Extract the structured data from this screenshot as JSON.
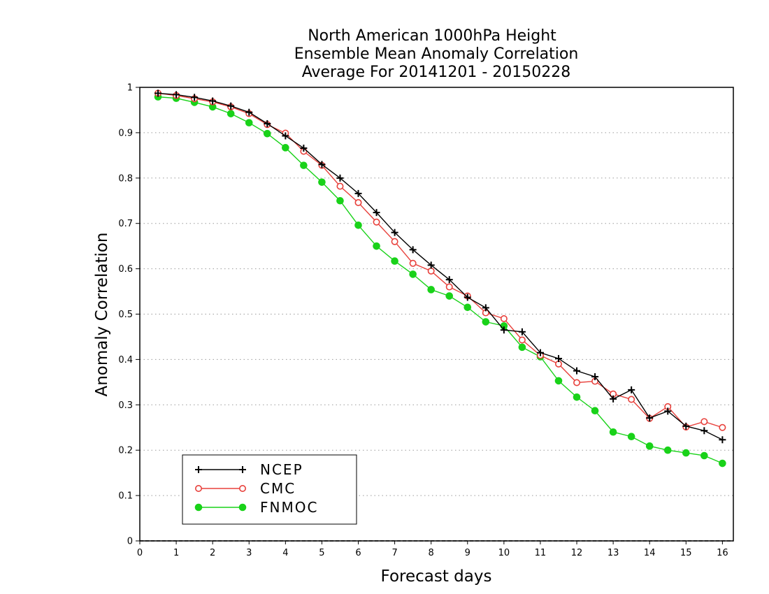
{
  "chart_data": {
    "type": "line",
    "title_lines": [
      "North American 1000hPa Height",
      "Ensemble Mean Anomaly Correlation",
      "Average For 20141201 - 20150228"
    ],
    "xlabel": "Forecast days",
    "ylabel": "Anomaly Correlation",
    "xlim": [
      0,
      16.3
    ],
    "ylim": [
      0,
      1
    ],
    "x_ticks": [
      0,
      1,
      2,
      3,
      4,
      5,
      6,
      7,
      8,
      9,
      10,
      11,
      12,
      13,
      14,
      15,
      16
    ],
    "y_ticks": [
      0,
      0.1,
      0.2,
      0.3,
      0.4,
      0.5,
      0.6,
      0.7,
      0.8,
      0.9,
      1
    ],
    "y_tick_labels": [
      "0",
      "0.1",
      "0.2",
      "0.3",
      "0.4",
      "0.5",
      "0.6",
      "0.7",
      "0.8",
      "0.9",
      "1"
    ],
    "grid": "horizontal dotted",
    "legend_position": "bottom-left",
    "x": [
      0.5,
      1.0,
      1.5,
      2.0,
      2.5,
      3.0,
      3.5,
      4.0,
      4.5,
      5.0,
      5.5,
      6.0,
      6.5,
      7.0,
      7.5,
      8.0,
      8.5,
      9.0,
      9.5,
      10.0,
      10.5,
      11.0,
      11.5,
      12.0,
      12.5,
      13.0,
      13.5,
      14.0,
      14.5,
      15.0,
      15.5,
      16.0
    ],
    "series": [
      {
        "name": "NCEP",
        "color": "#000000",
        "marker": "plus",
        "values": [
          0.987,
          0.984,
          0.978,
          0.97,
          0.959,
          0.945,
          0.92,
          0.893,
          0.866,
          0.83,
          0.8,
          0.766,
          0.724,
          0.68,
          0.642,
          0.608,
          0.576,
          0.537,
          0.514,
          0.465,
          0.461,
          0.415,
          0.402,
          0.375,
          0.362,
          0.313,
          0.333,
          0.271,
          0.286,
          0.253,
          0.243,
          0.223
        ]
      },
      {
        "name": "CMC",
        "color": "#e8413c",
        "marker": "open-circle",
        "values": [
          0.987,
          0.982,
          0.975,
          0.968,
          0.957,
          0.942,
          0.918,
          0.899,
          0.859,
          0.828,
          0.782,
          0.746,
          0.703,
          0.66,
          0.612,
          0.595,
          0.56,
          0.54,
          0.503,
          0.49,
          0.443,
          0.409,
          0.39,
          0.349,
          0.352,
          0.324,
          0.312,
          0.27,
          0.296,
          0.251,
          0.263,
          0.25
        ]
      },
      {
        "name": "FNMOC",
        "color": "#19d219",
        "marker": "filled-circle",
        "values": [
          0.979,
          0.976,
          0.967,
          0.957,
          0.942,
          0.922,
          0.898,
          0.867,
          0.828,
          0.791,
          0.75,
          0.696,
          0.65,
          0.617,
          0.588,
          0.554,
          0.54,
          0.515,
          0.483,
          0.474,
          0.427,
          0.406,
          0.353,
          0.317,
          0.287,
          0.24,
          0.23,
          0.209,
          0.2,
          0.194,
          0.188,
          0.171
        ]
      }
    ]
  }
}
